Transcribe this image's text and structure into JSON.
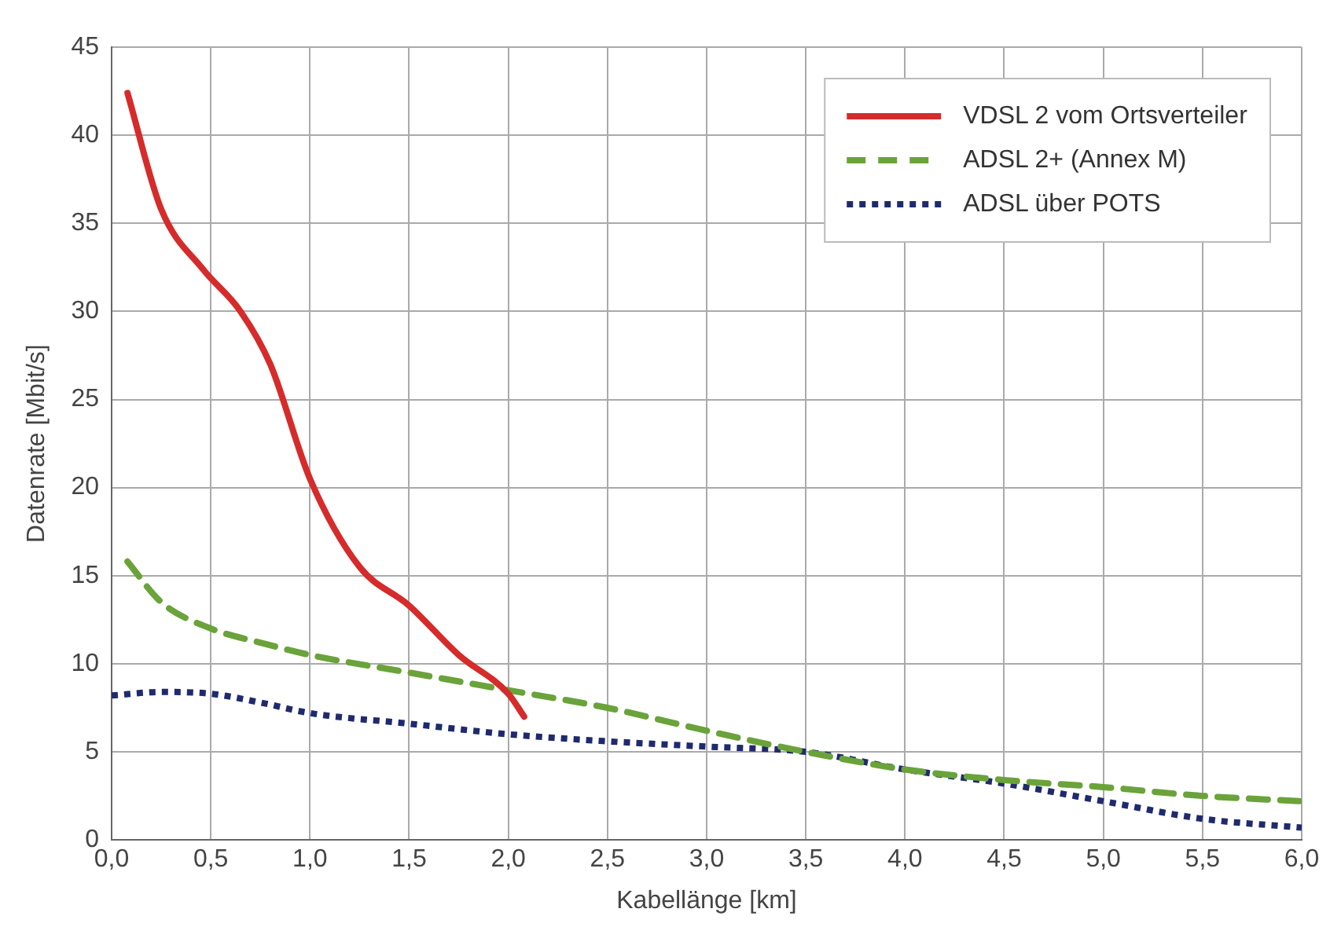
{
  "chart_data": {
    "type": "line",
    "xlabel": "Kabellänge [km]",
    "ylabel": "Datenrate [Mbit/s]",
    "xlim": [
      0,
      6
    ],
    "ylim": [
      0,
      45
    ],
    "xticks": [
      {
        "value": 0,
        "label": "0,0"
      },
      {
        "value": 0.5,
        "label": "0,5"
      },
      {
        "value": 1,
        "label": "1,0"
      },
      {
        "value": 1.5,
        "label": "1,5"
      },
      {
        "value": 2,
        "label": "2,0"
      },
      {
        "value": 2.5,
        "label": "2,5"
      },
      {
        "value": 3,
        "label": "3,0"
      },
      {
        "value": 3.5,
        "label": "3,5"
      },
      {
        "value": 4,
        "label": "4,0"
      },
      {
        "value": 4.5,
        "label": "4,5"
      },
      {
        "value": 5,
        "label": "5,0"
      },
      {
        "value": 5.5,
        "label": "5,5"
      },
      {
        "value": 6,
        "label": "6,0"
      }
    ],
    "yticks": [
      0,
      5,
      10,
      15,
      20,
      25,
      30,
      35,
      40,
      45
    ],
    "grid": true,
    "legend": "top right",
    "marker": "none",
    "series": [
      {
        "name": "VDSL 2 vom Ortsverteiler",
        "color": "#d62b2b",
        "line_style": "solid",
        "x": [
          0.08,
          0.25,
          0.46,
          0.65,
          0.8,
          1.0,
          1.25,
          1.5,
          1.75,
          2.0,
          2.08
        ],
        "values": [
          42.4,
          35.8,
          32.4,
          30,
          27,
          20.5,
          15.5,
          13.3,
          10.5,
          8.3,
          7.0
        ]
      },
      {
        "name": "ADSL 2+ (Annex M)",
        "color": "#6aa33a",
        "line_style": "dashed",
        "x": [
          0.08,
          0.25,
          0.5,
          0.75,
          1.0,
          1.5,
          2.0,
          2.5,
          3.0,
          3.5,
          4.0,
          4.5,
          5.0,
          5.5,
          6.0
        ],
        "values": [
          15.8,
          13.5,
          12,
          11.2,
          10.5,
          9.5,
          8.5,
          7.5,
          6.2,
          5.0,
          4.0,
          3.4,
          3.0,
          2.5,
          2.2
        ]
      },
      {
        "name": "ADSL über POTS",
        "color": "#1f2a6e",
        "line_style": "dotted",
        "x": [
          0.0,
          0.25,
          0.5,
          0.75,
          1.0,
          1.5,
          2.0,
          2.5,
          3.0,
          3.5,
          4.0,
          4.5,
          5.0,
          5.5,
          6.0
        ],
        "values": [
          8.2,
          8.4,
          8.3,
          7.8,
          7.2,
          6.6,
          6.0,
          5.6,
          5.3,
          5.0,
          4.0,
          3.2,
          2.2,
          1.2,
          0.7
        ]
      }
    ]
  }
}
